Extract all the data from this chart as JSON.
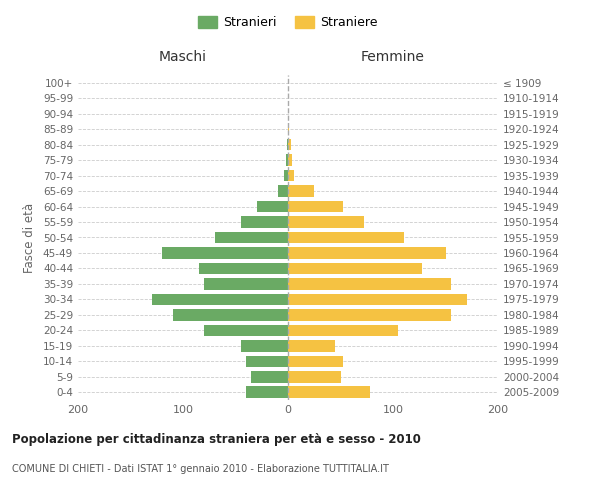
{
  "age_groups": [
    "0-4",
    "5-9",
    "10-14",
    "15-19",
    "20-24",
    "25-29",
    "30-34",
    "35-39",
    "40-44",
    "45-49",
    "50-54",
    "55-59",
    "60-64",
    "65-69",
    "70-74",
    "75-79",
    "80-84",
    "85-89",
    "90-94",
    "95-99",
    "100+"
  ],
  "birth_years": [
    "2005-2009",
    "2000-2004",
    "1995-1999",
    "1990-1994",
    "1985-1989",
    "1980-1984",
    "1975-1979",
    "1970-1974",
    "1965-1969",
    "1960-1964",
    "1955-1959",
    "1950-1954",
    "1945-1949",
    "1940-1944",
    "1935-1939",
    "1930-1934",
    "1925-1929",
    "1920-1924",
    "1915-1919",
    "1910-1914",
    "≤ 1909"
  ],
  "males": [
    40,
    35,
    40,
    45,
    80,
    110,
    130,
    80,
    85,
    120,
    70,
    45,
    30,
    10,
    4,
    2,
    1,
    0,
    0,
    0,
    0
  ],
  "females": [
    78,
    50,
    52,
    45,
    105,
    155,
    170,
    155,
    128,
    150,
    110,
    72,
    52,
    25,
    6,
    4,
    3,
    1,
    0,
    0,
    0
  ],
  "male_color": "#6aaa64",
  "female_color": "#f5c242",
  "title": "Popolazione per cittadinanza straniera per età e sesso - 2010",
  "subtitle": "COMUNE DI CHIETI - Dati ISTAT 1° gennaio 2010 - Elaborazione TUTTITALIA.IT",
  "ylabel_left": "Fasce di età",
  "legend_male": "Stranieri",
  "legend_female": "Straniere",
  "xlim": 200,
  "maschi_label": "Maschi",
  "femmine_label": "Femmine",
  "bg_color": "#ffffff",
  "grid_color": "#cccccc"
}
